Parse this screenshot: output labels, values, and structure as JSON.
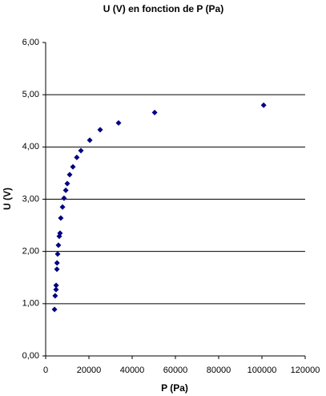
{
  "chart_data": {
    "type": "scatter",
    "title": "U (V) en fonction de P (Pa)",
    "x_label": "P (Pa)",
    "y_label": "U (V)",
    "series": [
      {
        "name": "U",
        "color": "#000080",
        "x": [
          4100,
          4400,
          4800,
          4850,
          5200,
          5250,
          5550,
          5900,
          6300,
          6650,
          7000,
          7800,
          8500,
          9300,
          10000,
          11100,
          12600,
          14400,
          16300,
          20400,
          25200,
          33700,
          50400,
          100800
        ],
        "values": [
          0.89,
          1.15,
          1.27,
          1.35,
          1.66,
          1.78,
          1.95,
          2.12,
          2.29,
          2.35,
          2.64,
          2.85,
          3.02,
          3.17,
          3.3,
          3.47,
          3.62,
          3.8,
          3.93,
          4.13,
          4.33,
          4.46,
          4.66,
          4.8
        ]
      }
    ],
    "xlim": [
      0,
      120000
    ],
    "xticks": [
      0,
      20000,
      40000,
      60000,
      80000,
      100000,
      120000
    ],
    "ylim": [
      0,
      6
    ],
    "yticks": [
      {
        "value": 0,
        "label": "0,00"
      },
      {
        "value": 1,
        "label": "1,00"
      },
      {
        "value": 2,
        "label": "2,00"
      },
      {
        "value": 3,
        "label": "3,00"
      },
      {
        "value": 4,
        "label": "4,00"
      },
      {
        "value": 5,
        "label": "5,00"
      },
      {
        "value": 6,
        "label": "6,00"
      }
    ],
    "grid": true
  }
}
